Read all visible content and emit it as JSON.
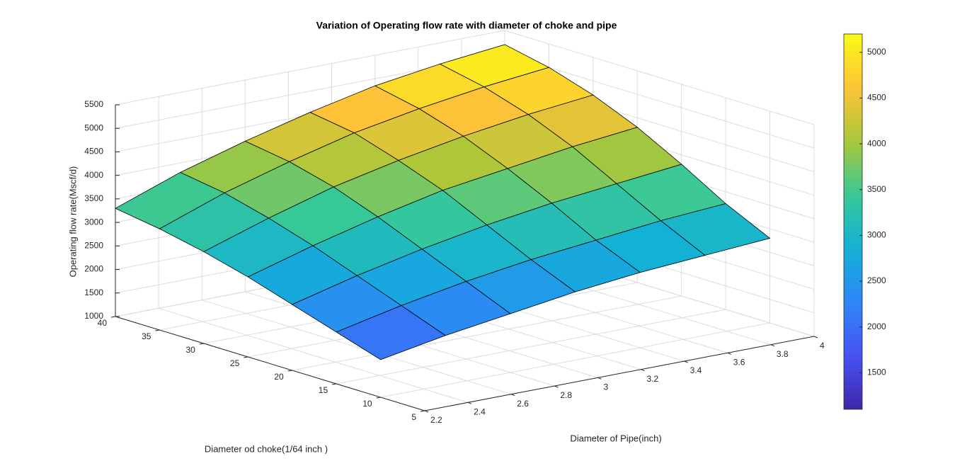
{
  "chart_data": {
    "type": "surface",
    "title": "Variation of Operating flow rate with diameter of choke and pipe",
    "xlabel": "Diameter of Pipe(inch)",
    "ylabel": "Diameter od choke(1/64 inch )",
    "zlabel": "Operating flow rate(Mscf/d)",
    "x": [
      2.2,
      2.5,
      2.8,
      3.1,
      3.4,
      3.7,
      4.0
    ],
    "y": [
      10,
      15,
      20,
      25,
      30,
      35,
      40
    ],
    "z": [
      [
        1800,
        2050,
        2250,
        2450,
        2600,
        2700,
        2800
      ],
      [
        2100,
        2400,
        2650,
        2850,
        3000,
        3150,
        3250
      ],
      [
        2400,
        2750,
        3050,
        3300,
        3500,
        3650,
        3800
      ],
      [
        2700,
        3100,
        3450,
        3750,
        3950,
        4150,
        4300
      ],
      [
        2950,
        3400,
        3800,
        4100,
        4350,
        4550,
        4700
      ],
      [
        3150,
        3650,
        4050,
        4400,
        4650,
        4850,
        5000
      ],
      [
        3300,
        3800,
        4200,
        4550,
        4850,
        5050,
        5200
      ]
    ],
    "xlim": [
      2.2,
      4
    ],
    "xticks": [
      2.2,
      2.4,
      2.6,
      2.8,
      3,
      3.2,
      3.4,
      3.6,
      3.8,
      4
    ],
    "ylim": [
      5,
      40
    ],
    "yticks": [
      5,
      10,
      15,
      20,
      25,
      30,
      35,
      40
    ],
    "zlim": [
      1000,
      5500
    ],
    "zticks": [
      1000,
      1500,
      2000,
      2500,
      3000,
      3500,
      4000,
      4500,
      5000,
      5500
    ],
    "clim": [
      1100,
      5200
    ],
    "cticks": [
      1500,
      2000,
      2500,
      3000,
      3500,
      4000,
      4500,
      5000
    ],
    "colormap": "parula",
    "grid": true
  }
}
